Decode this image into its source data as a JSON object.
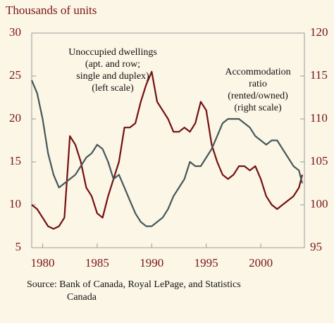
{
  "chart_data": {
    "type": "line",
    "y_label": "Thousands of units",
    "annotations": [
      [
        "Unoccupied dwellings",
        "(apt. and row;",
        "single and duplex)",
        "(left scale)"
      ],
      [
        "Accommodation",
        "ratio",
        "(rented/owned)",
        "(right scale)"
      ]
    ],
    "source": [
      "Source: Bank of Canada, Royal LePage, and Statistics",
      "Canada"
    ],
    "x": [
      1979,
      1979.5,
      1980,
      1980.5,
      1981,
      1981.5,
      1982,
      1982.5,
      1983,
      1983.5,
      1984,
      1984.5,
      1985,
      1985.5,
      1986,
      1986.5,
      1987,
      1987.5,
      1988,
      1988.5,
      1989,
      1989.5,
      1990,
      1990.5,
      1991,
      1991.5,
      1992,
      1992.5,
      1993,
      1993.5,
      1994,
      1994.5,
      1995,
      1995.5,
      1996,
      1996.5,
      1997,
      1997.5,
      1998,
      1998.5,
      1999,
      1999.5,
      2000,
      2000.5,
      2001,
      2001.5,
      2002,
      2002.5,
      2003,
      2003.5,
      2003.8
    ],
    "series": [
      {
        "name": "Unoccupied dwellings",
        "color": "#731010",
        "axis": "y",
        "values": [
          10,
          9.5,
          8.5,
          7.5,
          7.2,
          7.5,
          8.5,
          18,
          17,
          15,
          12,
          11,
          9,
          8.5,
          11,
          13,
          15,
          19,
          19,
          19.5,
          22,
          24,
          25.5,
          22,
          21,
          20,
          18.5,
          18.5,
          19,
          18.5,
          19.5,
          22,
          21,
          17,
          15,
          13.5,
          13,
          13.5,
          14.5,
          14.5,
          14,
          14.5,
          13,
          11,
          10,
          9.5,
          10,
          10.5,
          11,
          12,
          13.5
        ]
      },
      {
        "name": "Accommodation ratio",
        "color": "#46575a",
        "axis": "y2",
        "values": [
          114.5,
          113,
          110,
          106,
          103.5,
          102,
          102.5,
          103,
          103.5,
          104.5,
          105.5,
          106,
          107,
          106.5,
          105,
          103,
          103.5,
          102,
          100.5,
          99,
          98,
          97.5,
          97.5,
          98,
          98.5,
          99.5,
          101,
          102,
          103,
          105,
          104.5,
          104.5,
          105.5,
          106.5,
          108,
          109.5,
          110,
          110,
          110,
          109.5,
          109,
          108,
          107.5,
          107,
          107.5,
          107.5,
          106.5,
          105.5,
          104.5,
          104,
          102.5
        ]
      }
    ],
    "xlim": [
      1979,
      2004
    ],
    "xticks": [
      1980,
      1985,
      1990,
      1995,
      2000
    ],
    "ylim": [
      5,
      30
    ],
    "yticks": [
      5,
      10,
      15,
      20,
      25,
      30
    ],
    "y2lim": [
      95,
      120
    ],
    "y2ticks": [
      95,
      100,
      105,
      110,
      115,
      120
    ]
  }
}
